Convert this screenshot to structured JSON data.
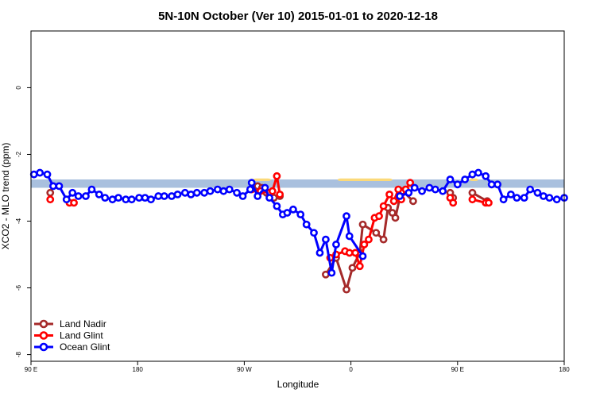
{
  "chart_data": {
    "type": "line",
    "title": "5N-10N October (Ver 10)   2015-01-01 to 2020-12-18",
    "xlabel": "Longitude",
    "ylabel": "XCO2 - MLO trend (ppm)",
    "xlim": [
      90,
      450
    ],
    "ylim": [
      -8.2,
      1.7
    ],
    "x_ticks": [
      {
        "value": 90,
        "label": "90 E"
      },
      {
        "value": 162,
        "label": "180"
      },
      {
        "value": 234,
        "label": "90 W"
      },
      {
        "value": 306,
        "label": "0"
      },
      {
        "value": 378,
        "label": "90 E"
      },
      {
        "value": 450,
        "label": "180"
      }
    ],
    "y_ticks": [
      {
        "value": 0,
        "label": "0"
      },
      {
        "value": -2,
        "label": "-2"
      },
      {
        "value": -4,
        "label": "-4"
      },
      {
        "value": -6,
        "label": "-6"
      },
      {
        "value": -8,
        "label": "-8"
      }
    ],
    "grid": false,
    "legend_position": "bottom-left",
    "background_band": {
      "y_from": -2.75,
      "y_to": -3.0,
      "color": "#a9c0de"
    },
    "land_mask_regions": [
      {
        "x_from": 297,
        "x_to": 334,
        "y_top": -2.72,
        "color": "#fbd979"
      },
      {
        "x_from": 240,
        "x_to": 252,
        "y_top": -2.72,
        "color": "#fbd979"
      },
      {
        "x_from": 386,
        "x_to": 392,
        "y_top": -2.72,
        "color": "#fbd979"
      }
    ],
    "series": [
      {
        "name": "Land Nadir",
        "color": "#a52a2a",
        "points": [
          [
            103,
            -3.15
          ],
          [
            243,
            -2.95
          ],
          [
            246,
            -3.0
          ],
          [
            249,
            -3.15
          ],
          [
            254,
            -3.3
          ],
          [
            258,
            -3.25
          ],
          [
            289,
            -5.6
          ],
          [
            296,
            -5.1
          ],
          [
            303,
            -6.05
          ],
          [
            307,
            -5.4
          ],
          [
            312,
            -4.95
          ],
          [
            314,
            -4.1
          ],
          [
            323,
            -4.35
          ],
          [
            328,
            -4.55
          ],
          [
            331,
            -3.6
          ],
          [
            334,
            -3.75
          ],
          [
            336,
            -3.9
          ],
          [
            339,
            -3.3
          ],
          [
            341,
            -3.1
          ],
          [
            348,
            -3.4
          ],
          [
            373,
            -3.15
          ],
          [
            375,
            -3.3
          ],
          [
            388,
            -3.15
          ],
          [
            398,
            -3.4
          ]
        ]
      },
      {
        "name": "Land Glint",
        "color": "#ff0000",
        "points": [
          [
            103,
            -3.35
          ],
          [
            116,
            -3.45
          ],
          [
            119,
            -3.45
          ],
          [
            239,
            -3.05
          ],
          [
            245,
            -3.1
          ],
          [
            251,
            -3.15
          ],
          [
            253,
            -3.1
          ],
          [
            256,
            -2.65
          ],
          [
            258,
            -3.2
          ],
          [
            292,
            -5.1
          ],
          [
            296,
            -5.0
          ],
          [
            302,
            -4.9
          ],
          [
            305,
            -4.95
          ],
          [
            309,
            -4.95
          ],
          [
            312,
            -5.35
          ],
          [
            315,
            -4.7
          ],
          [
            318,
            -4.55
          ],
          [
            322,
            -3.9
          ],
          [
            325,
            -3.85
          ],
          [
            328,
            -3.55
          ],
          [
            332,
            -3.2
          ],
          [
            335,
            -3.4
          ],
          [
            338,
            -3.05
          ],
          [
            340,
            -3.35
          ],
          [
            343,
            -3.05
          ],
          [
            346,
            -2.85
          ],
          [
            373,
            -3.3
          ],
          [
            375,
            -3.45
          ],
          [
            388,
            -3.35
          ],
          [
            397,
            -3.45
          ],
          [
            399,
            -3.45
          ]
        ]
      },
      {
        "name": "Ocean Glint",
        "color": "#0000ff",
        "points": [
          [
            92,
            -2.6
          ],
          [
            96,
            -2.55
          ],
          [
            101,
            -2.6
          ],
          [
            105,
            -2.95
          ],
          [
            109,
            -2.95
          ],
          [
            114,
            -3.35
          ],
          [
            118,
            -3.15
          ],
          [
            122,
            -3.25
          ],
          [
            127,
            -3.25
          ],
          [
            131,
            -3.05
          ],
          [
            136,
            -3.2
          ],
          [
            140,
            -3.3
          ],
          [
            145,
            -3.35
          ],
          [
            149,
            -3.3
          ],
          [
            154,
            -3.35
          ],
          [
            158,
            -3.35
          ],
          [
            163,
            -3.3
          ],
          [
            167,
            -3.3
          ],
          [
            171,
            -3.35
          ],
          [
            176,
            -3.25
          ],
          [
            180,
            -3.25
          ],
          [
            185,
            -3.25
          ],
          [
            189,
            -3.2
          ],
          [
            194,
            -3.15
          ],
          [
            198,
            -3.2
          ],
          [
            202,
            -3.15
          ],
          [
            207,
            -3.15
          ],
          [
            211,
            -3.1
          ],
          [
            216,
            -3.05
          ],
          [
            220,
            -3.1
          ],
          [
            224,
            -3.05
          ],
          [
            229,
            -3.15
          ],
          [
            233,
            -3.25
          ],
          [
            238,
            -3.05
          ],
          [
            239,
            -2.85
          ],
          [
            243,
            -3.25
          ],
          [
            248,
            -3.0
          ],
          [
            251,
            -3.3
          ],
          [
            256,
            -3.55
          ],
          [
            260,
            -3.8
          ],
          [
            263,
            -3.75
          ],
          [
            267,
            -3.65
          ],
          [
            272,
            -3.8
          ],
          [
            276,
            -4.1
          ],
          [
            281,
            -4.35
          ],
          [
            285,
            -4.95
          ],
          [
            289,
            -4.55
          ],
          [
            293,
            -5.55
          ],
          [
            296,
            -4.7
          ],
          [
            303,
            -3.85
          ],
          [
            305,
            -4.45
          ],
          [
            314,
            -5.05
          ],
          [
            339,
            -3.25
          ],
          [
            345,
            -3.15
          ],
          [
            349,
            -3.0
          ],
          [
            354,
            -3.1
          ],
          [
            359,
            -3.0
          ],
          [
            363,
            -3.05
          ],
          [
            368,
            -3.1
          ],
          [
            373,
            -2.75
          ],
          [
            378,
            -2.9
          ],
          [
            383,
            -2.75
          ],
          [
            388,
            -2.6
          ],
          [
            392,
            -2.55
          ],
          [
            397,
            -2.65
          ],
          [
            401,
            -2.9
          ],
          [
            405,
            -2.9
          ],
          [
            409,
            -3.35
          ],
          [
            414,
            -3.2
          ],
          [
            418,
            -3.3
          ],
          [
            423,
            -3.3
          ],
          [
            427,
            -3.05
          ],
          [
            432,
            -3.15
          ],
          [
            436,
            -3.25
          ],
          [
            440,
            -3.3
          ],
          [
            445,
            -3.35
          ],
          [
            450,
            -3.3
          ]
        ]
      }
    ]
  }
}
